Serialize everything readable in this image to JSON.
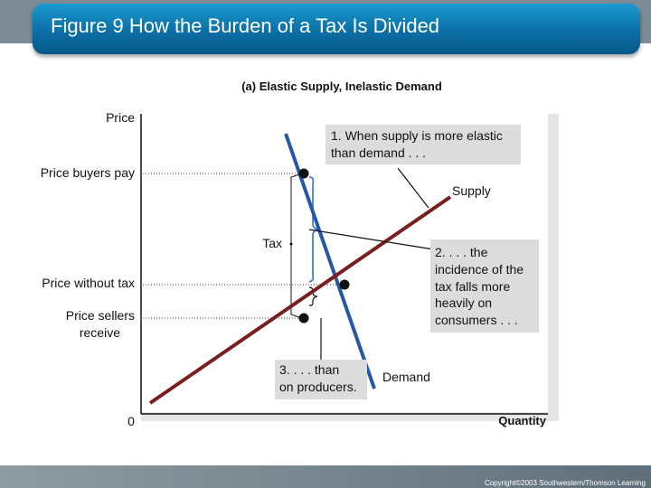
{
  "slide": {
    "title": "Figure 9 How the Burden of a Tax Is Divided",
    "copyright": "Copyright©2003 Southwestern/Thomson Learning"
  },
  "diagram": {
    "panel_title": "(a) Elastic Supply, Inelastic Demand",
    "y_axis_label": "Price",
    "x_axis_label": "Quantity",
    "origin_label": "0",
    "price_buyers_pay": "Price buyers pay",
    "price_without_tax": "Price without tax",
    "price_sellers_line1": "Price sellers",
    "price_sellers_line2": "receive",
    "tax_label": "Tax",
    "supply_label": "Supply",
    "demand_label": "Demand",
    "note1_line1": "1. When supply is more elastic",
    "note1_line2": "than demand . . .",
    "note2_line1": "2. . . . the",
    "note2_line2": "incidence of the",
    "note2_line3": "tax falls more",
    "note2_line4": "heavily on",
    "note2_line5": "consumers . . .",
    "note3_line1": "3. . . . than",
    "note3_line2": "on producers.",
    "colors": {
      "supply": "#7a1f1f",
      "demand": "#2457a6",
      "brace": "#2f6fd6",
      "title_bar": "#0b6fa6",
      "callout_bg": "#dcdcdc"
    }
  }
}
